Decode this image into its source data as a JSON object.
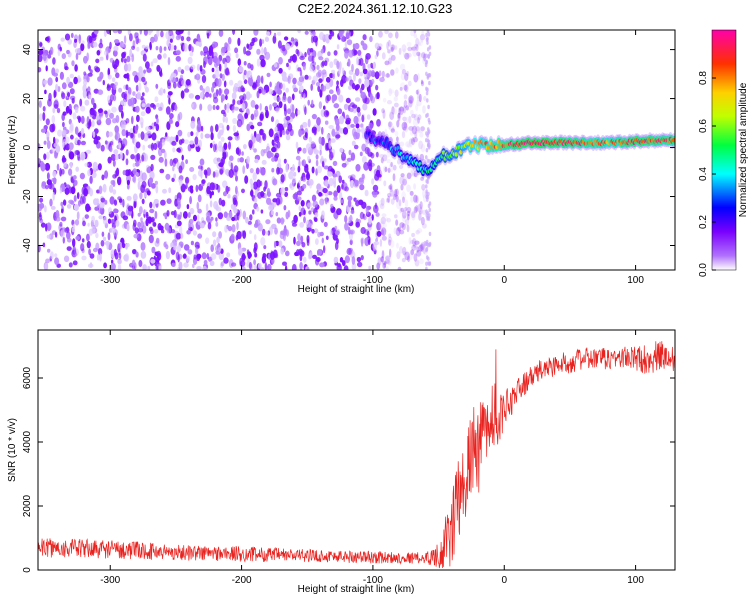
{
  "figure": {
    "title": "C2E2.2024.361.12.10.G23"
  },
  "chart_data": [
    {
      "type": "heatmap",
      "xlabel": "Height of straight line (km)",
      "ylabel": "Frequency (Hz)",
      "xlim": [
        -355,
        130
      ],
      "ylim": [
        -50,
        48
      ],
      "xticks": [
        -300,
        -200,
        -100,
        0,
        100
      ],
      "yticks": [
        -40,
        -20,
        0,
        20,
        40
      ],
      "colorbar": {
        "label": "Normalized spectral amplitude",
        "range": [
          0,
          1
        ],
        "ticks": [
          0.0,
          0.2,
          0.4,
          0.6,
          0.8
        ],
        "colormap": [
          "#ffffff",
          "#7a00ff",
          "#0000ff",
          "#00ffff",
          "#00ff00",
          "#ffff00",
          "#ff8000",
          "#ff0000",
          "#ff00aa"
        ]
      },
      "ridge": {
        "x": [
          -105,
          -95,
          -85,
          -75,
          -65,
          -58,
          -52,
          -45,
          -38,
          -30,
          -20,
          -10,
          0,
          20,
          40,
          60,
          80,
          100,
          120,
          130
        ],
        "y": [
          5,
          3,
          0,
          -4,
          -8,
          -10,
          -6,
          -3,
          -2,
          0,
          1,
          1,
          1,
          2,
          2,
          2,
          2,
          2.5,
          3,
          3
        ],
        "amplitude": [
          0.25,
          0.3,
          0.35,
          0.4,
          0.45,
          0.45,
          0.5,
          0.55,
          0.6,
          0.65,
          0.75,
          0.8,
          0.85,
          0.95,
          0.9,
          0.85,
          0.8,
          0.9,
          0.85,
          0.85
        ]
      },
      "noise_region": {
        "x": [
          -355,
          -60
        ],
        "amplitude": "0.05-0.25"
      }
    },
    {
      "type": "line",
      "xlabel": "Height of straight line (km)",
      "ylabel": "SNR (10 * v/v)",
      "xlim": [
        -355,
        130
      ],
      "ylim": [
        0,
        7500
      ],
      "xticks": [
        -300,
        -200,
        -100,
        0,
        100
      ],
      "yticks": [
        0,
        2000,
        4000,
        6000
      ],
      "color": "#e8231f",
      "x": [
        -355,
        -300,
        -250,
        -200,
        -150,
        -100,
        -80,
        -60,
        -50,
        -45,
        -40,
        -35,
        -30,
        -25,
        -20,
        -15,
        -10,
        -5,
        0,
        10,
        20,
        30,
        40,
        50,
        60,
        70,
        80,
        90,
        100,
        110,
        120,
        130
      ],
      "y": [
        700,
        650,
        550,
        500,
        450,
        400,
        380,
        380,
        450,
        800,
        1200,
        2000,
        3000,
        3500,
        3800,
        4200,
        4400,
        4700,
        5000,
        5600,
        6000,
        6300,
        6400,
        6500,
        6600,
        6600,
        6600,
        6650,
        6600,
        6600,
        6700,
        6600
      ],
      "noise_amplitude": [
        300,
        300,
        250,
        250,
        200,
        200,
        180,
        180,
        400,
        800,
        1200,
        1500,
        1500,
        1500,
        1500,
        1200,
        1000,
        800,
        600,
        400,
        350,
        350,
        350,
        350,
        350,
        350,
        350,
        350,
        400,
        500,
        500,
        500
      ]
    }
  ]
}
